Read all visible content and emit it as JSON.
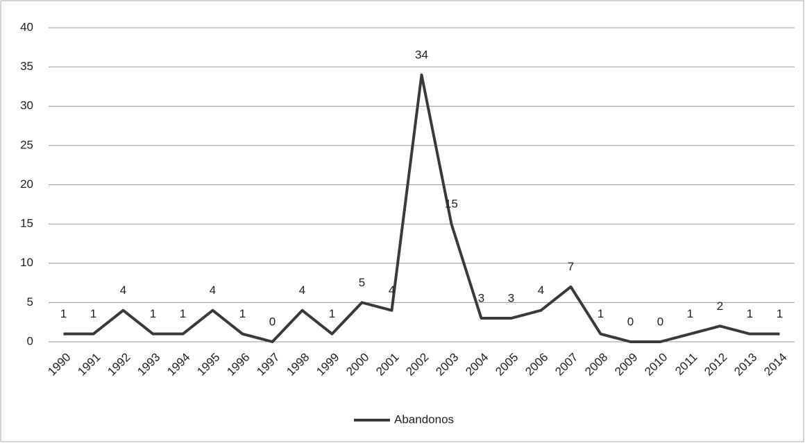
{
  "chart_data": {
    "type": "line",
    "categories": [
      "1990",
      "1991",
      "1992",
      "1993",
      "1994",
      "1995",
      "1996",
      "1997",
      "1998",
      "1999",
      "2000",
      "2001",
      "2002",
      "2003",
      "2004",
      "2005",
      "2006",
      "2007",
      "2008",
      "2009",
      "2010",
      "2011",
      "2012",
      "2013",
      "2014"
    ],
    "series": [
      {
        "name": "Abandonos",
        "color": "#3a3a3a",
        "values": [
          1,
          1,
          4,
          1,
          1,
          4,
          1,
          0,
          4,
          1,
          5,
          4,
          34,
          15,
          3,
          3,
          4,
          7,
          1,
          0,
          0,
          1,
          2,
          1,
          1
        ]
      }
    ],
    "ylim": [
      0,
      40
    ],
    "yticks": [
      0,
      5,
      10,
      15,
      20,
      25,
      30,
      35,
      40
    ],
    "grid": true,
    "legend": "bottom"
  }
}
